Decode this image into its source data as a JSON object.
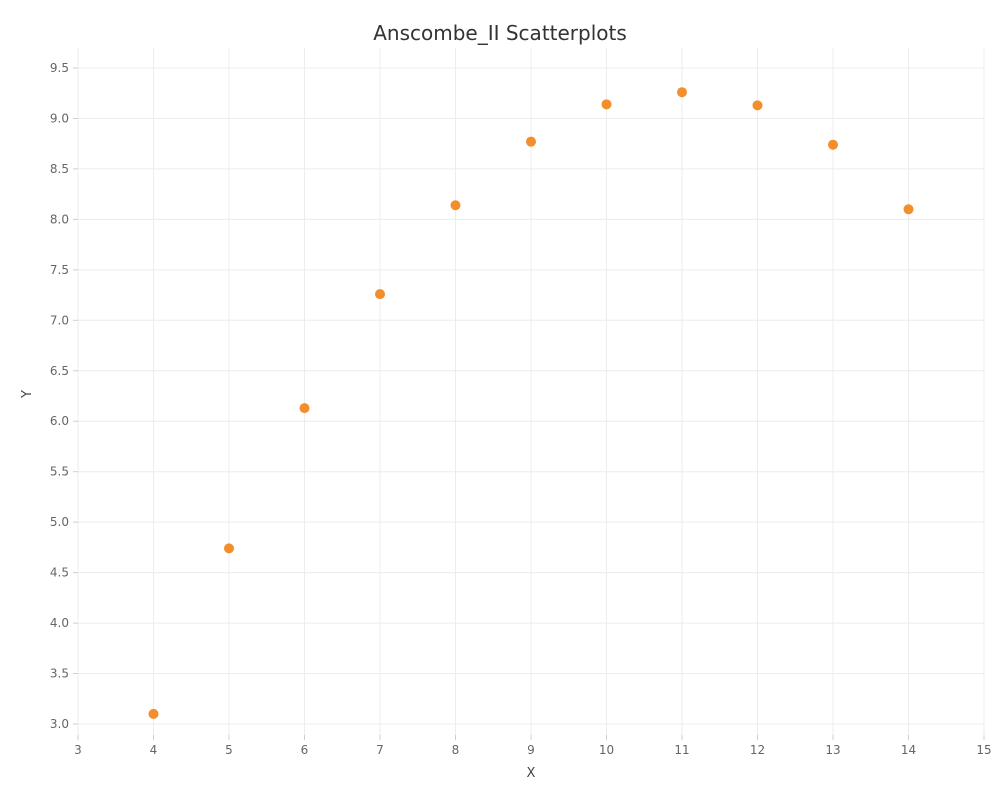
{
  "chart_data": {
    "type": "scatter",
    "title": "Anscombe_II Scatterplots",
    "xlabel": "X",
    "ylabel": "Y",
    "xlim": [
      3,
      15
    ],
    "ylim": [
      2.9,
      9.6
    ],
    "xticks": [
      3,
      4,
      5,
      6,
      7,
      8,
      9,
      10,
      11,
      12,
      13,
      14,
      15
    ],
    "yticks": [
      "3.0",
      "3.5",
      "4.0",
      "4.5",
      "5.0",
      "5.5",
      "6.0",
      "6.5",
      "7.0",
      "7.5",
      "8.0",
      "8.5",
      "9.0",
      "9.5"
    ],
    "grid": true,
    "color": "#f28e2b",
    "points": [
      {
        "x": 4,
        "y": 3.1
      },
      {
        "x": 5,
        "y": 4.74
      },
      {
        "x": 6,
        "y": 6.13
      },
      {
        "x": 7,
        "y": 7.26
      },
      {
        "x": 8,
        "y": 8.14
      },
      {
        "x": 9,
        "y": 8.77
      },
      {
        "x": 10,
        "y": 9.14
      },
      {
        "x": 11,
        "y": 9.26
      },
      {
        "x": 12,
        "y": 9.13
      },
      {
        "x": 13,
        "y": 8.74
      },
      {
        "x": 14,
        "y": 8.1
      }
    ]
  }
}
